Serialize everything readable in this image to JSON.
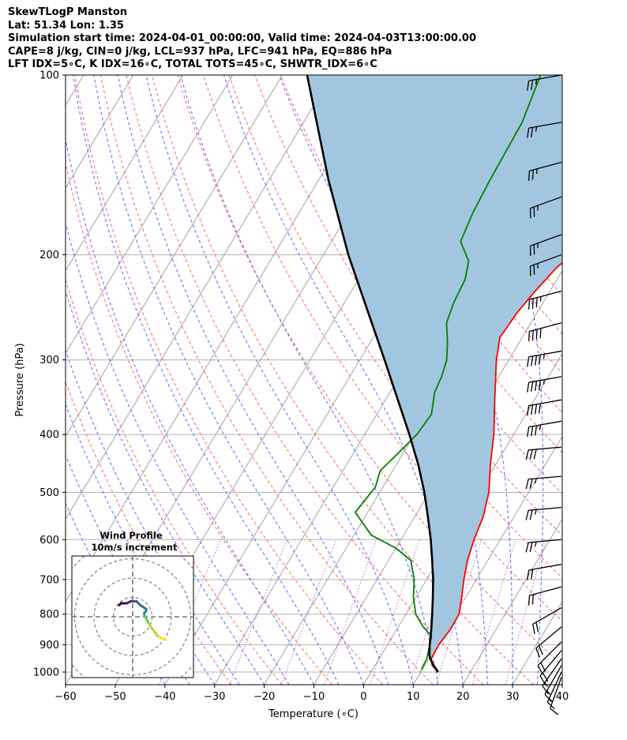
{
  "header": {
    "line1": "SkewTLogP Manston",
    "line2": "Lat: 51.34   Lon: 1.35",
    "line3": "Simulation start time: 2024-04-01_00:00:00, Valid time: 2024-04-03T13:00:00.00",
    "line4": "CAPE=8 j/kg, CIN=0 j/kg, LCL=937 hPa, LFC=941 hPa, EQ=886 hPa",
    "line5": "LFT IDX=5∘C, K IDX=16∘C, TOTAL TOTS=45∘C, SHWTR_IDX=6∘C"
  },
  "chart_data": {
    "type": "line",
    "subtype": "skew-t log-p",
    "xlabel": "Temperature (∘C)",
    "ylabel": "Pressure (hPa)",
    "xlim": [
      -60,
      40
    ],
    "ylim": [
      1050,
      100
    ],
    "y_scale": "log",
    "x_ticks": [
      "−60",
      "−50",
      "−40",
      "−30",
      "−20",
      "−10",
      "0",
      "10",
      "20",
      "30",
      "40"
    ],
    "y_ticks": [
      "100",
      "200",
      "300",
      "400",
      "500",
      "600",
      "700",
      "800",
      "900",
      "1000"
    ],
    "y_tick_values": [
      100,
      200,
      300,
      400,
      500,
      600,
      700,
      800,
      900,
      1000
    ],
    "grid": true,
    "series": [
      {
        "role": "temperature",
        "color": "#ff0000",
        "points": [
          [
            1000,
            13.5
          ],
          [
            975,
            11.5
          ],
          [
            950,
            10.5
          ],
          [
            925,
            10.4
          ],
          [
            900,
            10.3
          ],
          [
            850,
            10.8
          ],
          [
            800,
            10.7
          ],
          [
            750,
            9.2
          ],
          [
            700,
            7.5
          ],
          [
            650,
            5.9
          ],
          [
            600,
            4.7
          ],
          [
            550,
            3.8
          ],
          [
            500,
            2.0
          ],
          [
            450,
            -1.0
          ],
          [
            400,
            -4.0
          ],
          [
            350,
            -8.0
          ],
          [
            300,
            -12.5
          ],
          [
            275,
            -14.5
          ],
          [
            250,
            -14.0
          ],
          [
            230,
            -13.0
          ],
          [
            210,
            -11.5
          ],
          [
            200,
            -10.0
          ],
          [
            185,
            -7.0
          ],
          [
            175,
            -4.5
          ],
          [
            160,
            -1.0
          ],
          [
            145,
            2.0
          ],
          [
            130,
            4.0
          ],
          [
            115,
            6.0
          ],
          [
            100,
            7.0
          ]
        ]
      },
      {
        "role": "dewpoint",
        "color": "#008000",
        "points": [
          [
            990,
            9.8
          ],
          [
            950,
            9.6
          ],
          [
            900,
            8.5
          ],
          [
            870,
            7.8
          ],
          [
            840,
            5.0
          ],
          [
            800,
            2.0
          ],
          [
            750,
            -0.5
          ],
          [
            700,
            -2.5
          ],
          [
            650,
            -5.5
          ],
          [
            620,
            -10.0
          ],
          [
            590,
            -16.5
          ],
          [
            540,
            -22.5
          ],
          [
            490,
            -21.5
          ],
          [
            460,
            -22.5
          ],
          [
            430,
            -21.0
          ],
          [
            400,
            -19.5
          ],
          [
            370,
            -19.0
          ],
          [
            340,
            -21.0
          ],
          [
            320,
            -21.5
          ],
          [
            300,
            -22.5
          ],
          [
            280,
            -24.5
          ],
          [
            260,
            -27.0
          ],
          [
            240,
            -28.0
          ],
          [
            220,
            -28.5
          ],
          [
            205,
            -30.0
          ],
          [
            190,
            -34.0
          ],
          [
            170,
            -35.0
          ],
          [
            150,
            -35.5
          ],
          [
            120,
            -36.0
          ],
          [
            100,
            -38.0
          ]
        ]
      },
      {
        "role": "parcel",
        "color": "#000000",
        "points": [
          [
            1000,
            13.5
          ],
          [
            975,
            11.8
          ],
          [
            950,
            10.3
          ],
          [
            937,
            9.7
          ],
          [
            900,
            8.5
          ],
          [
            850,
            7.0
          ],
          [
            800,
            5.3
          ],
          [
            750,
            3.4
          ],
          [
            700,
            1.3
          ],
          [
            650,
            -1.2
          ],
          [
            600,
            -4.0
          ],
          [
            550,
            -7.3
          ],
          [
            500,
            -11.0
          ],
          [
            450,
            -15.5
          ],
          [
            400,
            -21.0
          ],
          [
            350,
            -27.5
          ],
          [
            300,
            -35.0
          ],
          [
            250,
            -44.0
          ],
          [
            200,
            -55.0
          ],
          [
            150,
            -68.0
          ],
          [
            100,
            -85.0
          ]
        ]
      }
    ],
    "shaded_region": {
      "between": [
        "parcel",
        "temperature"
      ],
      "color": "#a3c6e0"
    },
    "dry_adiabats_color": "#ff6666",
    "moist_adiabats_color": "#6666ff",
    "isotherms_color": "#999999",
    "mixing_ratio_color": "#9955cc",
    "wind_barbs": {
      "pressures": [
        100,
        120,
        140,
        160,
        185,
        200,
        230,
        260,
        290,
        320,
        350,
        380,
        420,
        470,
        530,
        600,
        660,
        720,
        780,
        840,
        890,
        920,
        950,
        975,
        1000,
        1020
      ],
      "direction_deg": [
        260,
        260,
        255,
        250,
        250,
        250,
        255,
        255,
        260,
        260,
        260,
        260,
        265,
        265,
        265,
        265,
        260,
        255,
        240,
        230,
        225,
        220,
        215,
        210,
        205,
        200
      ],
      "speed_kt": [
        25,
        25,
        25,
        25,
        25,
        25,
        35,
        40,
        45,
        45,
        40,
        35,
        30,
        25,
        25,
        25,
        20,
        20,
        20,
        20,
        20,
        20,
        15,
        15,
        15,
        10
      ]
    },
    "hodograph": {
      "title": "Wind Profile",
      "subtitle": "10m/s increment",
      "ring_step_ms": 10,
      "points": [
        [
          17,
          -12
        ],
        [
          13,
          -10
        ],
        [
          10,
          -6
        ],
        [
          8,
          -3
        ],
        [
          7,
          -1
        ],
        [
          6,
          1
        ],
        [
          6,
          2
        ],
        [
          7,
          3
        ],
        [
          7,
          4
        ],
        [
          4,
          6
        ],
        [
          2,
          8
        ],
        [
          -1,
          8
        ],
        [
          -3,
          7
        ],
        [
          -4,
          7
        ],
        [
          -6,
          7
        ],
        [
          -7,
          6
        ]
      ]
    }
  }
}
